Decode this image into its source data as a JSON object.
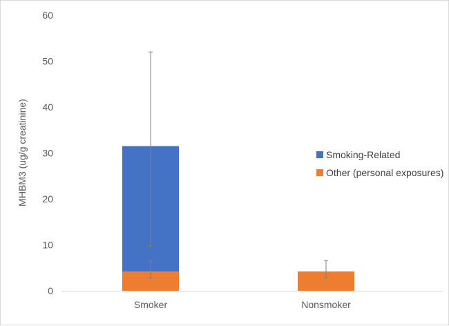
{
  "chart_data": {
    "type": "bar",
    "stacked": true,
    "categories": [
      "Smoker",
      "Nonsmoker"
    ],
    "series": [
      {
        "name": "Other (personal exposures)",
        "values": [
          4.2,
          4.2
        ],
        "color": "#ED7D31",
        "error_low": [
          2.8,
          2.8
        ],
        "error_high": [
          6.6,
          6.6
        ]
      },
      {
        "name": "Smoking-Related",
        "values": [
          27.3,
          0
        ],
        "color": "#4472C4",
        "error_low": [
          9.7,
          null
        ],
        "error_high": [
          52.0,
          null
        ]
      }
    ],
    "title": "",
    "xlabel": "",
    "ylabel": "MHBM3 (ug/g creatinine)",
    "ylim": [
      0,
      60
    ],
    "yticks": [
      "0",
      "10",
      "20",
      "30",
      "40",
      "50",
      "60"
    ],
    "grid": false,
    "legend_position": "right",
    "legend_order": [
      "Smoking-Related",
      "Other (personal exposures)"
    ],
    "axis_color": "#d9d9d9",
    "errorbar_color": "#808080"
  }
}
